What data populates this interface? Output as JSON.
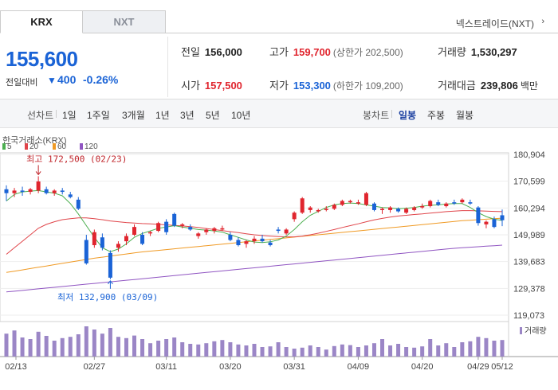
{
  "tabs": [
    {
      "label": "KRX",
      "active": true
    },
    {
      "label": "NXT",
      "active": false
    }
  ],
  "nxt_link": "넥스트레이드(NXT)",
  "nxt_arrow": "›",
  "quote": {
    "price": "155,600",
    "change_label": "전일대비",
    "change_symbol": "▼",
    "change_value": "400",
    "change_pct": "-0.26%"
  },
  "stats": {
    "prev_close": {
      "label": "전일",
      "value": "156,000"
    },
    "high": {
      "label": "고가",
      "value": "159,700",
      "sub": "(상한가 202,500)"
    },
    "volume": {
      "label": "거래량",
      "value": "1,530,297"
    },
    "open": {
      "label": "시가",
      "value": "157,500"
    },
    "low": {
      "label": "저가",
      "value": "153,300",
      "sub": "(하한가 109,200)"
    },
    "amount": {
      "label": "거래대금",
      "value": "239,806",
      "unit": "백만"
    }
  },
  "toolbar": {
    "line_label": "선차트",
    "periods": [
      "1일",
      "1주일",
      "3개월",
      "1년",
      "3년",
      "5년",
      "10년"
    ],
    "candle_label": "봉차트",
    "candles": [
      "일봉",
      "주봉",
      "월봉"
    ],
    "selected_candle": "일봉"
  },
  "chart_legend": "한국거래소(KRX)",
  "ma_legend": [
    {
      "label": "5",
      "color": "#4caf50"
    },
    {
      "label": "20",
      "color": "#e0454a"
    },
    {
      "label": "60",
      "color": "#f09a24"
    },
    {
      "label": "120",
      "color": "#9055c2"
    }
  ],
  "colors": {
    "up": "#e0252e",
    "down": "#1a63d6",
    "volume": "#9b86c6"
  },
  "chart_data": {
    "type": "candlestick",
    "y_ticks": [
      "180,904",
      "170,599",
      "160,294",
      "149,989",
      "139,683",
      "129,378",
      "119,073"
    ],
    "ylim": [
      119073,
      180904
    ],
    "x_ticks": [
      "02/13",
      "02/27",
      "03/11",
      "03/20",
      "03/31",
      "04/09",
      "04/20",
      "04/29",
      "05/12"
    ],
    "high_annotation": "최고 172,500 (02/23)",
    "low_annotation": "최저 132,900 (03/09)",
    "volume_label": "거래량",
    "candles": [
      {
        "o": 167500,
        "h": 169000,
        "l": 163000,
        "c": 166000
      },
      {
        "o": 166000,
        "h": 168000,
        "l": 164500,
        "c": 167000
      },
      {
        "o": 167000,
        "h": 168500,
        "l": 165000,
        "c": 166500
      },
      {
        "o": 166500,
        "h": 168000,
        "l": 165500,
        "c": 167500
      },
      {
        "o": 167000,
        "h": 172500,
        "l": 166000,
        "c": 170500
      },
      {
        "o": 167500,
        "h": 168500,
        "l": 165500,
        "c": 166000
      },
      {
        "o": 166000,
        "h": 167500,
        "l": 165000,
        "c": 167000
      },
      {
        "o": 167000,
        "h": 168000,
        "l": 165500,
        "c": 166500
      },
      {
        "o": 165500,
        "h": 166500,
        "l": 164000,
        "c": 164500
      },
      {
        "o": 163500,
        "h": 164500,
        "l": 159500,
        "c": 160000
      },
      {
        "o": 148000,
        "h": 150000,
        "l": 138500,
        "c": 139000
      },
      {
        "o": 146000,
        "h": 152000,
        "l": 145000,
        "c": 151000
      },
      {
        "o": 149000,
        "h": 150500,
        "l": 144000,
        "c": 145000
      },
      {
        "o": 143000,
        "h": 144000,
        "l": 132900,
        "c": 133500
      },
      {
        "o": 145000,
        "h": 147500,
        "l": 143500,
        "c": 146500
      },
      {
        "o": 147500,
        "h": 150500,
        "l": 146000,
        "c": 149500
      },
      {
        "o": 150000,
        "h": 154000,
        "l": 149500,
        "c": 153000
      },
      {
        "o": 150000,
        "h": 151000,
        "l": 146000,
        "c": 146500
      },
      {
        "o": 150500,
        "h": 151500,
        "l": 149500,
        "c": 151000
      },
      {
        "o": 151500,
        "h": 155000,
        "l": 151000,
        "c": 154500
      },
      {
        "o": 155000,
        "h": 156000,
        "l": 150000,
        "c": 151000
      },
      {
        "o": 158000,
        "h": 158500,
        "l": 153000,
        "c": 153500
      },
      {
        "o": 153500,
        "h": 154500,
        "l": 152500,
        "c": 154000
      },
      {
        "o": 153000,
        "h": 154000,
        "l": 151500,
        "c": 152000
      },
      {
        "o": 149500,
        "h": 151000,
        "l": 148500,
        "c": 150500
      },
      {
        "o": 151000,
        "h": 152500,
        "l": 150000,
        "c": 152000
      },
      {
        "o": 151500,
        "h": 153000,
        "l": 150500,
        "c": 152500
      },
      {
        "o": 152000,
        "h": 153500,
        "l": 151500,
        "c": 152500
      },
      {
        "o": 150000,
        "h": 151000,
        "l": 147500,
        "c": 148000
      },
      {
        "o": 148000,
        "h": 149000,
        "l": 145500,
        "c": 146000
      },
      {
        "o": 146500,
        "h": 148000,
        "l": 145000,
        "c": 147500
      },
      {
        "o": 147500,
        "h": 149500,
        "l": 146500,
        "c": 148500
      },
      {
        "o": 148500,
        "h": 150000,
        "l": 147000,
        "c": 147500
      },
      {
        "o": 147000,
        "h": 148000,
        "l": 145500,
        "c": 146000
      },
      {
        "o": 152000,
        "h": 153000,
        "l": 150500,
        "c": 151500
      },
      {
        "o": 150500,
        "h": 152500,
        "l": 150000,
        "c": 152000
      },
      {
        "o": 156000,
        "h": 159000,
        "l": 155000,
        "c": 158500
      },
      {
        "o": 158500,
        "h": 164500,
        "l": 158000,
        "c": 164000
      },
      {
        "o": 159500,
        "h": 161000,
        "l": 158500,
        "c": 160500
      },
      {
        "o": 159000,
        "h": 160000,
        "l": 158500,
        "c": 159500
      },
      {
        "o": 159500,
        "h": 161000,
        "l": 159000,
        "c": 160000
      },
      {
        "o": 160000,
        "h": 162000,
        "l": 159500,
        "c": 161500
      },
      {
        "o": 161500,
        "h": 163500,
        "l": 161000,
        "c": 163000
      },
      {
        "o": 162500,
        "h": 163500,
        "l": 162000,
        "c": 163000
      },
      {
        "o": 162000,
        "h": 163500,
        "l": 161500,
        "c": 162500
      },
      {
        "o": 161500,
        "h": 166500,
        "l": 161000,
        "c": 166000
      },
      {
        "o": 162000,
        "h": 162500,
        "l": 159000,
        "c": 159500
      },
      {
        "o": 159500,
        "h": 160500,
        "l": 158000,
        "c": 160000
      },
      {
        "o": 159500,
        "h": 161000,
        "l": 158500,
        "c": 160500
      },
      {
        "o": 160000,
        "h": 160500,
        "l": 158500,
        "c": 159000
      },
      {
        "o": 158500,
        "h": 160500,
        "l": 158000,
        "c": 160000
      },
      {
        "o": 159500,
        "h": 161000,
        "l": 159000,
        "c": 160500
      },
      {
        "o": 160500,
        "h": 162000,
        "l": 160000,
        "c": 161000
      },
      {
        "o": 161000,
        "h": 163500,
        "l": 160500,
        "c": 163000
      },
      {
        "o": 162500,
        "h": 163500,
        "l": 161000,
        "c": 161500
      },
      {
        "o": 161000,
        "h": 162500,
        "l": 160500,
        "c": 162000
      },
      {
        "o": 162500,
        "h": 163500,
        "l": 161500,
        "c": 162000
      },
      {
        "o": 162500,
        "h": 164000,
        "l": 162000,
        "c": 163500
      },
      {
        "o": 162500,
        "h": 163500,
        "l": 161500,
        "c": 162000
      },
      {
        "o": 160500,
        "h": 161000,
        "l": 153500,
        "c": 154500
      },
      {
        "o": 154000,
        "h": 155500,
        "l": 152500,
        "c": 155000
      },
      {
        "o": 156000,
        "h": 157000,
        "l": 152500,
        "c": 153000
      },
      {
        "o": 157500,
        "h": 159700,
        "l": 153300,
        "c": 155600
      }
    ],
    "ma5": [
      163000,
      165500,
      166500,
      166800,
      167000,
      166500,
      166000,
      165000,
      162000,
      158000,
      153500,
      149000,
      145000,
      143500,
      144500,
      146500,
      149000,
      150500,
      151500,
      152500,
      153000,
      153500,
      153000,
      152500,
      152000,
      151800,
      151500,
      151000,
      150000,
      149000,
      148000,
      147200,
      147000,
      147300,
      148000,
      149500,
      152000,
      155000,
      157500,
      159000,
      160500,
      161500,
      162000,
      162200,
      162000,
      161500,
      161000,
      160500,
      160300,
      160000,
      160200,
      160500,
      161000,
      161300,
      161500,
      161800,
      162000,
      162000,
      160500,
      158500,
      157000,
      156000,
      155500
    ],
    "ma20": [
      142500,
      145000,
      147500,
      150000,
      152500,
      154000,
      155000,
      155800,
      156200,
      156500,
      156500,
      156200,
      155800,
      155300,
      155000,
      154700,
      154500,
      154300,
      154200,
      154000,
      153800,
      153600,
      153400,
      153100,
      152800,
      152400,
      152000,
      151600,
      151200,
      150800,
      150400,
      150000,
      149700,
      149500,
      149300,
      149200,
      149200,
      149500,
      150000,
      150600,
      151300,
      152000,
      152800,
      153500,
      154200,
      155000,
      155700,
      156300,
      156800,
      157200,
      157500,
      157800,
      158000,
      158300,
      158600,
      158900,
      159100,
      159300,
      159300,
      159200,
      159100,
      159000,
      158900
    ],
    "ma60": [
      135500,
      136000,
      136500,
      137000,
      137500,
      138000,
      138500,
      139000,
      139500,
      140000,
      140500,
      141000,
      141400,
      141800,
      142200,
      142600,
      143000,
      143400,
      143700,
      144000,
      144300,
      144600,
      144900,
      145200,
      145500,
      145800,
      146100,
      146400,
      146700,
      147000,
      147300,
      147600,
      147900,
      148200,
      148500,
      148800,
      149100,
      149400,
      149700,
      150000,
      150300,
      150600,
      150900,
      151200,
      151500,
      151800,
      152100,
      152400,
      152700,
      153000,
      153300,
      153600,
      153900,
      154200,
      154500,
      154800,
      155100,
      155400,
      155600,
      155800,
      156000,
      156200,
      156400
    ],
    "ma120": [
      128000,
      128300,
      128600,
      128900,
      129200,
      129500,
      129800,
      130100,
      130400,
      130700,
      131000,
      131300,
      131600,
      131900,
      132200,
      132500,
      132800,
      133100,
      133400,
      133700,
      134000,
      134300,
      134600,
      134900,
      135200,
      135500,
      135800,
      136100,
      136400,
      136700,
      137000,
      137300,
      137600,
      137900,
      138200,
      138500,
      138800,
      139100,
      139400,
      139700,
      140000,
      140300,
      140600,
      140900,
      141200,
      141500,
      141800,
      142100,
      142400,
      142700,
      143000,
      143300,
      143600,
      143900,
      144200,
      144500,
      144800,
      145000,
      145200,
      145400,
      145600,
      145800,
      146000
    ],
    "volumes": [
      0.72,
      0.82,
      0.6,
      0.55,
      0.78,
      0.65,
      0.5,
      0.58,
      0.62,
      0.7,
      0.95,
      0.85,
      0.72,
      0.9,
      0.62,
      0.58,
      0.66,
      0.55,
      0.42,
      0.5,
      0.55,
      0.6,
      0.45,
      0.4,
      0.38,
      0.42,
      0.48,
      0.52,
      0.45,
      0.38,
      0.35,
      0.4,
      0.3,
      0.32,
      0.45,
      0.3,
      0.25,
      0.28,
      0.35,
      0.3,
      0.22,
      0.33,
      0.38,
      0.36,
      0.3,
      0.35,
      0.42,
      0.55,
      0.35,
      0.4,
      0.3,
      0.28,
      0.32,
      0.55,
      0.35,
      0.42,
      0.3,
      0.45,
      0.48,
      0.62,
      0.58,
      0.5,
      0.52
    ]
  }
}
